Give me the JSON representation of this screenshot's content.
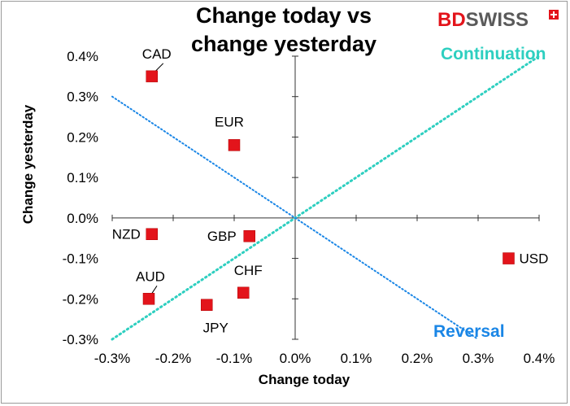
{
  "brand": {
    "logo_bd": "BD",
    "logo_swiss": "SWISS",
    "colors": {
      "bd": "#e3141b",
      "swiss": "#5a5a5a"
    }
  },
  "chart_data": {
    "type": "scatter",
    "title_lines": [
      "Change today vs",
      "change yesterday"
    ],
    "xlabel": "Change today",
    "ylabel": "Change yesterday",
    "xlim": [
      -0.3,
      0.4
    ],
    "ylim": [
      -0.3,
      0.4
    ],
    "xticks": [
      -0.3,
      -0.2,
      -0.1,
      0.0,
      0.1,
      0.2,
      0.3,
      0.4
    ],
    "yticks": [
      -0.3,
      -0.2,
      -0.1,
      0.0,
      0.1,
      0.2,
      0.3,
      0.4
    ],
    "xtick_labels": [
      "-0.3%",
      "-0.2%",
      "-0.1%",
      "0.0%",
      "0.1%",
      "0.2%",
      "0.3%",
      "0.4%"
    ],
    "ytick_labels": [
      "-0.3%",
      "-0.2%",
      "-0.1%",
      "0.0%",
      "0.1%",
      "0.2%",
      "0.3%",
      "0.4%"
    ],
    "marker_color": "#e3141b",
    "points": [
      {
        "label": "CAD",
        "x": -0.235,
        "y": 0.35
      },
      {
        "label": "EUR",
        "x": -0.1,
        "y": 0.18
      },
      {
        "label": "NZD",
        "x": -0.235,
        "y": -0.04
      },
      {
        "label": "GBP",
        "x": -0.075,
        "y": -0.045
      },
      {
        "label": "USD",
        "x": 0.35,
        "y": -0.1
      },
      {
        "label": "AUD",
        "x": -0.24,
        "y": -0.2
      },
      {
        "label": "CHF",
        "x": -0.085,
        "y": -0.185
      },
      {
        "label": "JPY",
        "x": -0.145,
        "y": -0.215
      }
    ],
    "lines": [
      {
        "name": "Continuation",
        "from": [
          -0.3,
          -0.3
        ],
        "to": [
          0.4,
          0.4
        ],
        "color": "#2ecfc0"
      },
      {
        "name": "Reversal",
        "from": [
          -0.3,
          0.3
        ],
        "to": [
          0.3,
          -0.3
        ],
        "color": "#1a86e6"
      }
    ],
    "annotations": [
      {
        "text": "Continuation",
        "color": "#2ecfc0"
      },
      {
        "text": "Reversal",
        "color": "#1a86e6"
      }
    ]
  }
}
